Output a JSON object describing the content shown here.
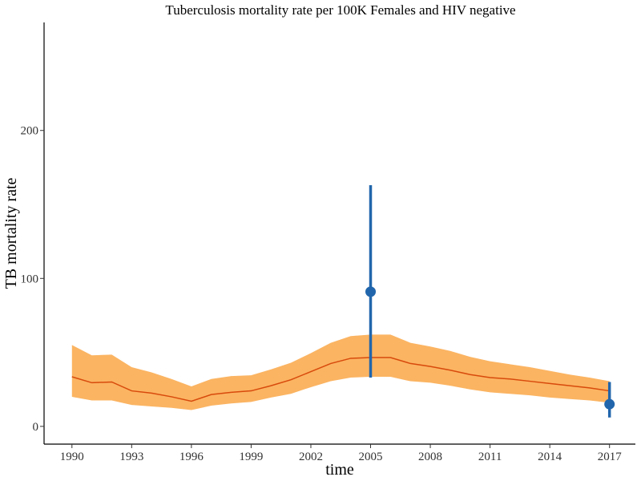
{
  "chart_data": {
    "type": "line",
    "title": "Tuberculosis mortality rate per 100K Females and HIV negative",
    "xlabel": "time",
    "ylabel": "TB mortality rate",
    "xlim": [
      1988.6,
      2018.3
    ],
    "ylim": [
      -12,
      273
    ],
    "x_ticks": [
      1990,
      1993,
      1996,
      1999,
      2002,
      2005,
      2008,
      2011,
      2014,
      2017
    ],
    "y_ticks": [
      0,
      100,
      200
    ],
    "grid": false,
    "legend": "none",
    "band_color": "#fbb462",
    "line_color": "#d84a0c",
    "point_color": "#2166ac",
    "estimate": {
      "x": [
        1990,
        1991,
        1992,
        1993,
        1994,
        1995,
        1996,
        1997,
        1998,
        1999,
        2000,
        2001,
        2002,
        2003,
        2004,
        2005,
        2006,
        2007,
        2008,
        2009,
        2010,
        2011,
        2012,
        2013,
        2014,
        2015,
        2016,
        2017
      ],
      "value": [
        33.5,
        29.5,
        30,
        24,
        22.5,
        20,
        17,
        21.5,
        23,
        24,
        27.5,
        31.5,
        37,
        42.5,
        46,
        46.5,
        46.5,
        42.5,
        40.5,
        38,
        35,
        33,
        32,
        30.5,
        29,
        27.5,
        26,
        24
      ],
      "lower": [
        20,
        17.5,
        17.5,
        14.5,
        13.5,
        12.5,
        11,
        14,
        15.5,
        16.5,
        19.5,
        22,
        26.5,
        30.5,
        33,
        33.5,
        33.5,
        30.5,
        29.5,
        27.5,
        25,
        23,
        22,
        21,
        19.5,
        18.5,
        17.5,
        16
      ],
      "upper": [
        55,
        48,
        48.5,
        40,
        36.5,
        32,
        27,
        32,
        34,
        34.5,
        38.5,
        43,
        49.5,
        56.5,
        61,
        62,
        62,
        56.5,
        54,
        51,
        47,
        44,
        42,
        40,
        37.5,
        35,
        33,
        30.5
      ]
    },
    "points": [
      {
        "x": 2005,
        "y": 91,
        "low": 33,
        "high": 163
      },
      {
        "x": 2017,
        "y": 15,
        "low": 6,
        "high": 30
      }
    ]
  }
}
